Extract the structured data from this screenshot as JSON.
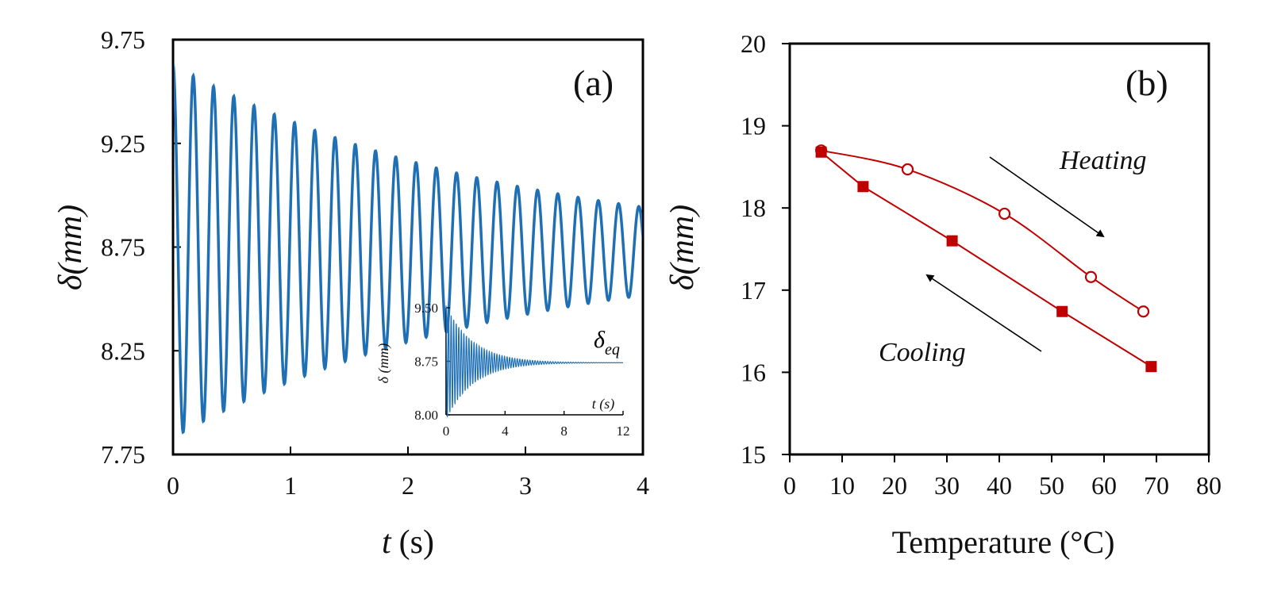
{
  "colors": {
    "series_a": "#1f6fb4",
    "series_b": "#c00000",
    "axis": "#000000"
  },
  "chart_data": [
    {
      "type": "line",
      "panel_label": "(a)",
      "description_series": "damped oscillation of delta vs time",
      "xlabel_var": "t",
      "xlabel_unit": "(s)",
      "ylabel_var": "δ",
      "ylabel_unit": "(mm)",
      "xlim": [
        0,
        4
      ],
      "ylim": [
        7.75,
        9.75
      ],
      "xticks": [
        "0",
        "1",
        "2",
        "3",
        "4"
      ],
      "yticks": [
        "7.75",
        "8.25",
        "8.75",
        "9.25",
        "9.75"
      ],
      "model": {
        "equilibrium": 8.73,
        "initial_amplitude": 0.9,
        "frequency_hz": 5.8,
        "decay_rate": 0.36
      },
      "inset": {
        "xlim": [
          0,
          12
        ],
        "ylim": [
          8.0,
          9.5
        ],
        "xticks": [
          "0",
          "4",
          "8",
          "12"
        ],
        "yticks": [
          "8.00",
          "8.75",
          "9.50"
        ],
        "xlabel": "t (s)",
        "ylabel": "δ (mm)",
        "annotation": "δ",
        "annotation_sub": "eq"
      }
    },
    {
      "type": "line",
      "panel_label": "(b)",
      "xlabel": "Temperature  (°C)",
      "ylabel_var": "δ",
      "ylabel_unit": "(mm)",
      "xlim": [
        0,
        80
      ],
      "ylim": [
        15,
        20
      ],
      "xticks": [
        "0",
        "10",
        "20",
        "30",
        "40",
        "50",
        "60",
        "70",
        "80"
      ],
      "yticks": [
        "15",
        "16",
        "17",
        "18",
        "19",
        "20"
      ],
      "series": [
        {
          "name": "Heating",
          "marker": "open-circle",
          "x": [
            6,
            22.5,
            41,
            57.5,
            67.5
          ],
          "y": [
            18.7,
            18.47,
            17.93,
            17.16,
            16.74
          ]
        },
        {
          "name": "Cooling",
          "marker": "filled-square",
          "x": [
            6,
            14,
            31,
            52,
            69
          ],
          "y": [
            18.68,
            18.26,
            17.6,
            16.74,
            16.07
          ]
        }
      ],
      "annotations": [
        "Heating",
        "Cooling"
      ]
    }
  ]
}
